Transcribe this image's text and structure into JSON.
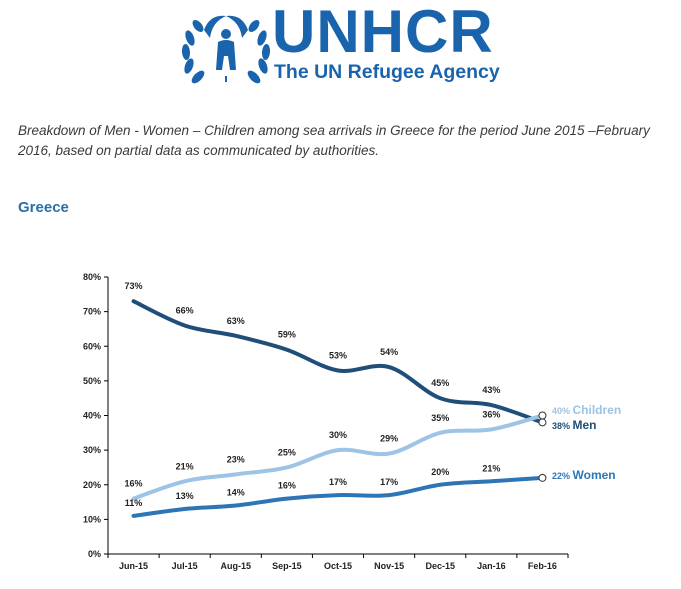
{
  "header": {
    "org_name": "UNHCR",
    "org_tagline": "The UN Refugee Agency",
    "brand_color": "#1a64ad"
  },
  "caption": "Breakdown of Men - Women – Children among sea arrivals in Greece for the period June 2015 –February 2016, based on partial data as communicated by authorities.",
  "region_title": "Greece",
  "chart_data": {
    "type": "line",
    "categories": [
      "Jun-15",
      "Jul-15",
      "Aug-15",
      "Sep-15",
      "Oct-15",
      "Nov-15",
      "Dec-15",
      "Jan-16",
      "Feb-16"
    ],
    "ylim": [
      0,
      80
    ],
    "yticks": [
      "0%",
      "10%",
      "20%",
      "30%",
      "40%",
      "50%",
      "60%",
      "70%",
      "80%"
    ],
    "grid": false,
    "legend": "end-of-line labels",
    "series": [
      {
        "name": "Men",
        "values": [
          73,
          66,
          63,
          59,
          53,
          54,
          45,
          43,
          38
        ],
        "color": "#1f4e79",
        "labels": [
          "73%",
          "66%",
          "63%",
          "59%",
          "53%",
          "54%",
          "45%",
          "43%",
          "38%"
        ]
      },
      {
        "name": "Children",
        "values": [
          16,
          21,
          23,
          25,
          30,
          29,
          35,
          36,
          40
        ],
        "color": "#9dc3e6",
        "labels": [
          "16%",
          "21%",
          "23%",
          "25%",
          "30%",
          "29%",
          "35%",
          "36%",
          "40%"
        ]
      },
      {
        "name": "Women",
        "values": [
          11,
          13,
          14,
          16,
          17,
          17,
          20,
          21,
          22
        ],
        "color": "#2e75b6",
        "labels": [
          "11%",
          "13%",
          "14%",
          "16%",
          "17%",
          "17%",
          "20%",
          "21%",
          "22%"
        ]
      }
    ]
  }
}
